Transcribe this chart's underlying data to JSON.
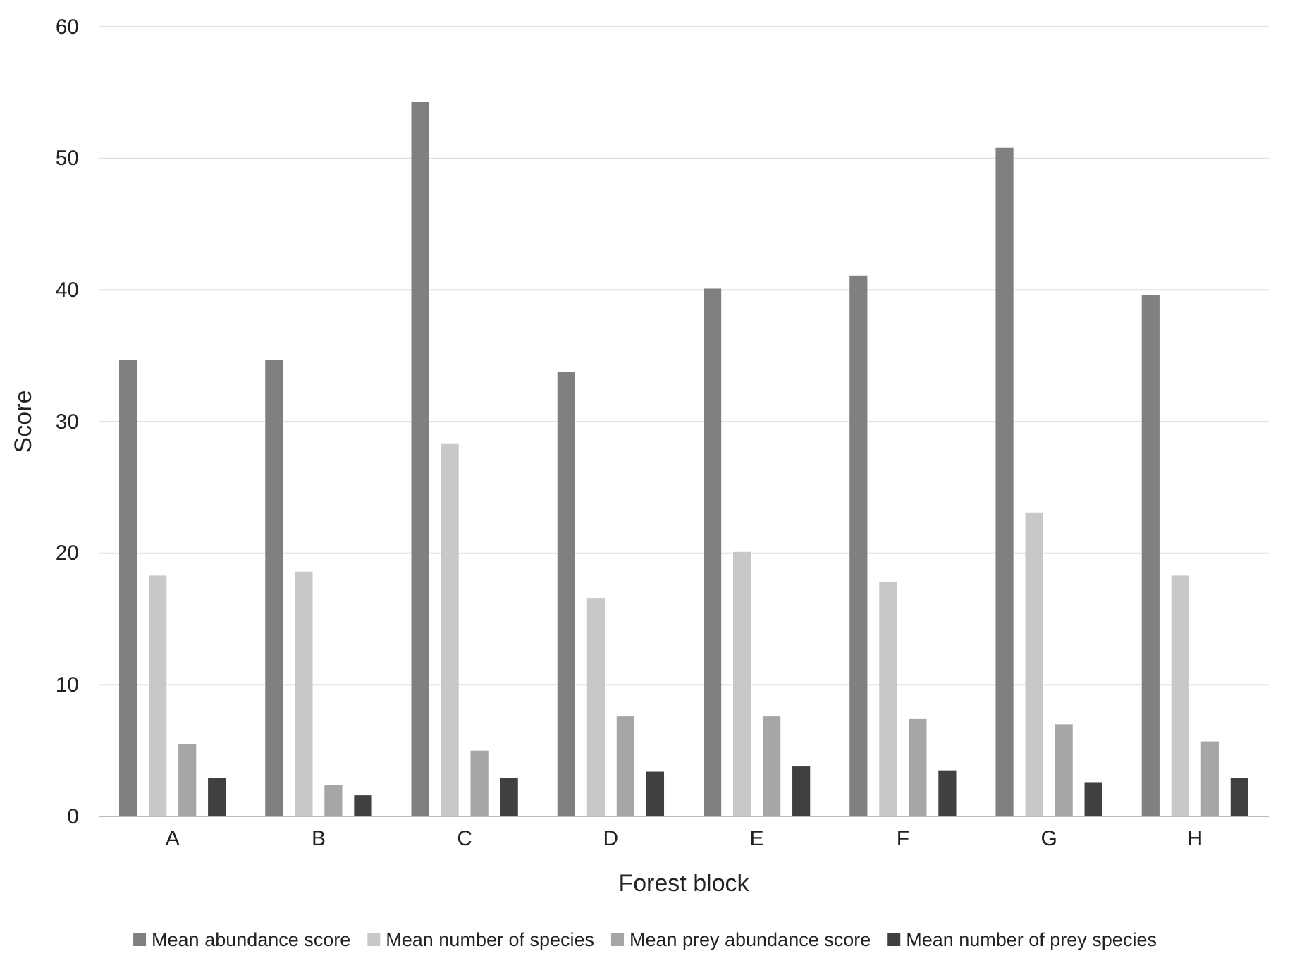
{
  "chart_data": {
    "type": "bar",
    "xlabel": "Forest block",
    "ylabel": "Score",
    "categories": [
      "A",
      "B",
      "C",
      "D",
      "E",
      "F",
      "G",
      "H"
    ],
    "series": [
      {
        "name": "Mean abundance score",
        "color": "#808080",
        "values": [
          34.7,
          34.7,
          54.3,
          33.8,
          40.1,
          41.1,
          50.8,
          39.6
        ]
      },
      {
        "name": "Mean number of species",
        "color": "#c8c8c8",
        "values": [
          18.3,
          18.6,
          28.3,
          16.6,
          20.1,
          17.8,
          23.1,
          18.3
        ]
      },
      {
        "name": "Mean prey abundance score",
        "color": "#a6a6a6",
        "values": [
          5.5,
          2.4,
          5.0,
          7.6,
          7.6,
          7.4,
          7.0,
          5.7
        ]
      },
      {
        "name": "Mean number of prey species",
        "color": "#404040",
        "values": [
          2.9,
          1.6,
          2.9,
          3.4,
          3.8,
          3.5,
          2.6,
          2.9
        ]
      }
    ],
    "ylim": [
      0,
      60
    ],
    "yticks": [
      0,
      10,
      20,
      30,
      40,
      50,
      60
    ],
    "grid": "y",
    "legend": "bottom"
  }
}
